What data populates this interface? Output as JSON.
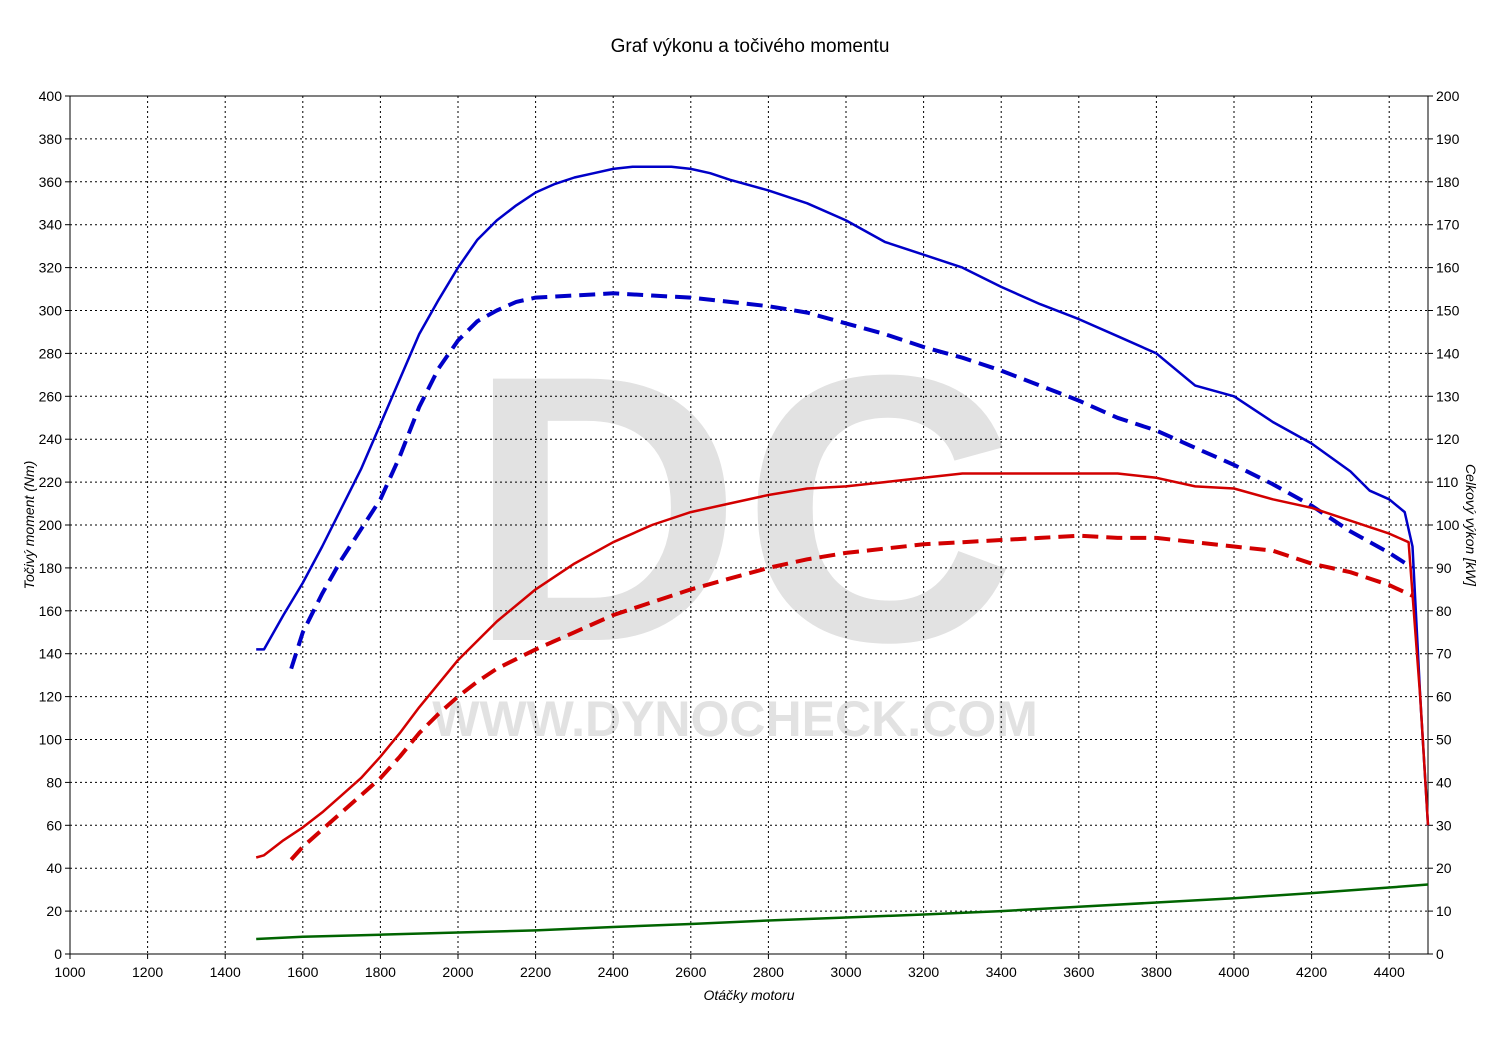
{
  "watermark": {
    "logo": "DC",
    "url": "WWW.DYNOCHECK.COM"
  },
  "chart_data": {
    "type": "line",
    "title": "Graf výkonu a točivého momentu",
    "xlabel": "Otáčky motoru",
    "ylabel_left": "Točivý moment (Nm)",
    "ylabel_right": "Celkový výkon [kW]",
    "xlim": [
      1000,
      4500
    ],
    "ylim_left": [
      0,
      400
    ],
    "ylim_right": [
      0,
      200
    ],
    "x_ticks": [
      "1000",
      "1200",
      "1400",
      "1600",
      "1800",
      "2000",
      "2200",
      "2400",
      "2600",
      "2800",
      "3000",
      "3200",
      "3400",
      "3600",
      "3800",
      "4000",
      "4200",
      "4400"
    ],
    "y_ticks_left": [
      "0",
      "20",
      "40",
      "60",
      "80",
      "100",
      "120",
      "140",
      "160",
      "180",
      "200",
      "220",
      "240",
      "260",
      "280",
      "300",
      "320",
      "340",
      "360",
      "380",
      "400"
    ],
    "y_ticks_right": [
      "0",
      "10",
      "20",
      "30",
      "40",
      "50",
      "60",
      "70",
      "80",
      "90",
      "100",
      "110",
      "120",
      "130",
      "140",
      "150",
      "160",
      "170",
      "180",
      "190",
      "200"
    ],
    "grid": true,
    "series": [
      {
        "axis": "left",
        "color": "#0000c8",
        "style": "solid",
        "x": [
          1480,
          1500,
          1550,
          1600,
          1650,
          1700,
          1750,
          1800,
          1850,
          1900,
          1950,
          2000,
          2050,
          2100,
          2150,
          2200,
          2250,
          2300,
          2350,
          2400,
          2450,
          2500,
          2550,
          2600,
          2650,
          2700,
          2800,
          2900,
          3000,
          3100,
          3200,
          3300,
          3400,
          3500,
          3600,
          3700,
          3800,
          3900,
          4000,
          4100,
          4200,
          4300,
          4350,
          4400,
          4440,
          4460,
          4480,
          4500
        ],
        "y": [
          142,
          142,
          158,
          173,
          190,
          208,
          226,
          247,
          268,
          289,
          305,
          320,
          333,
          342,
          349,
          355,
          359,
          362,
          364,
          366,
          367,
          367,
          367,
          366,
          364,
          361,
          356,
          350,
          342,
          332,
          326,
          320,
          311,
          303,
          296,
          288,
          280,
          265,
          260,
          248,
          238,
          225,
          216,
          212,
          206,
          190,
          120,
          60
        ]
      },
      {
        "axis": "left",
        "color": "#0000c8",
        "style": "dashed",
        "x": [
          1570,
          1600,
          1650,
          1700,
          1750,
          1800,
          1850,
          1900,
          1950,
          2000,
          2050,
          2100,
          2150,
          2200,
          2300,
          2400,
          2500,
          2600,
          2700,
          2800,
          2900,
          3000,
          3100,
          3200,
          3300,
          3400,
          3500,
          3600,
          3700,
          3800,
          3900,
          4000,
          4100,
          4200,
          4300,
          4400,
          4460
        ],
        "y": [
          133,
          150,
          168,
          184,
          198,
          212,
          232,
          255,
          273,
          286,
          295,
          300,
          304,
          306,
          307,
          308,
          307,
          306,
          304,
          302,
          299,
          294,
          289,
          283,
          278,
          272,
          265,
          258,
          250,
          244,
          236,
          228,
          219,
          209,
          197,
          187,
          180
        ]
      },
      {
        "axis": "right",
        "color": "#d20000",
        "style": "solid",
        "x": [
          1480,
          1500,
          1550,
          1600,
          1650,
          1700,
          1750,
          1800,
          1850,
          1900,
          1950,
          2000,
          2100,
          2200,
          2300,
          2400,
          2500,
          2600,
          2700,
          2800,
          2900,
          3000,
          3100,
          3200,
          3300,
          3400,
          3500,
          3600,
          3700,
          3800,
          3900,
          4000,
          4100,
          4200,
          4300,
          4400,
          4450,
          4480,
          4500
        ],
        "y": [
          22.5,
          23,
          26.5,
          29.5,
          33,
          37,
          41,
          46,
          51.5,
          57.5,
          63,
          68.5,
          77.5,
          85,
          91,
          96,
          100,
          103,
          105,
          107,
          108.5,
          109,
          110,
          111,
          112,
          112,
          112,
          112,
          112,
          111,
          109,
          108.5,
          106,
          104,
          101,
          98,
          96,
          60,
          30
        ]
      },
      {
        "axis": "right",
        "color": "#d20000",
        "style": "dashed",
        "x": [
          1570,
          1600,
          1650,
          1700,
          1750,
          1800,
          1850,
          1900,
          1950,
          2000,
          2050,
          2100,
          2200,
          2300,
          2400,
          2500,
          2600,
          2700,
          2800,
          2900,
          3000,
          3100,
          3200,
          3300,
          3400,
          3500,
          3600,
          3700,
          3800,
          3900,
          4000,
          4100,
          4200,
          4300,
          4400,
          4460
        ],
        "y": [
          22,
          25,
          29,
          33,
          37,
          41,
          46,
          51.5,
          56,
          60,
          63.5,
          66.5,
          71,
          75,
          79,
          82,
          85,
          87.5,
          90,
          92,
          93.5,
          94.5,
          95.5,
          96,
          96.5,
          97,
          97.5,
          97,
          97,
          96,
          95,
          94,
          91,
          89,
          86,
          83.5
        ]
      },
      {
        "axis": "right",
        "color": "#006400",
        "style": "solid",
        "x": [
          1480,
          1600,
          1800,
          2000,
          2200,
          2400,
          2600,
          2800,
          3000,
          3200,
          3400,
          3600,
          3800,
          4000,
          4200,
          4400,
          4500
        ],
        "y": [
          3.5,
          4,
          4.5,
          5,
          5.5,
          6.3,
          7,
          7.8,
          8.5,
          9.2,
          10,
          11,
          12,
          13,
          14.2,
          15.5,
          16.2
        ]
      }
    ]
  }
}
